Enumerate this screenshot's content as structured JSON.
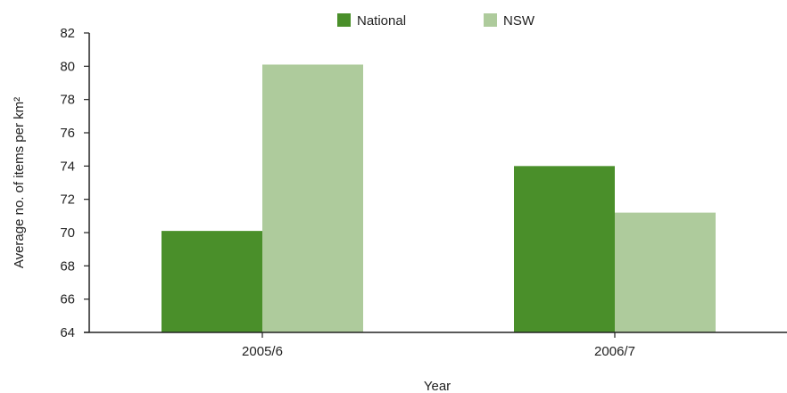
{
  "chart_data": {
    "type": "bar",
    "categories": [
      "2005/6",
      "2006/7"
    ],
    "series": [
      {
        "name": "National",
        "values": [
          70.1,
          74.0
        ],
        "color": "#4a8f2a"
      },
      {
        "name": "NSW",
        "values": [
          80.1,
          71.2
        ],
        "color": "#aecb9c"
      }
    ],
    "xlabel": "Year",
    "ylabel": "Average no. of items per km²",
    "ylim": [
      64,
      82
    ],
    "yticks": [
      64,
      66,
      68,
      70,
      72,
      74,
      76,
      78,
      80,
      82
    ],
    "grid": false,
    "legend_position": "top-center"
  }
}
